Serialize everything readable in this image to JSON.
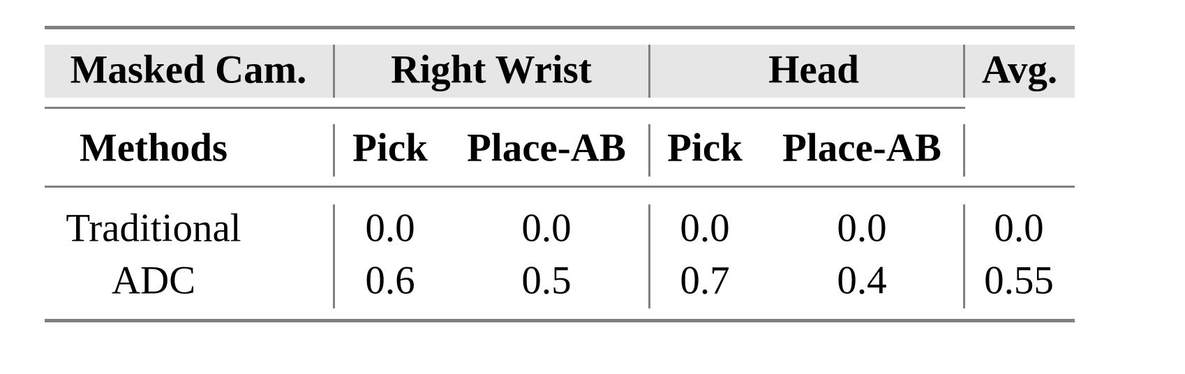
{
  "table": {
    "header_row1": {
      "masked_cam": "Masked Cam.",
      "right_wrist": "Right Wrist",
      "head": "Head",
      "avg": "Avg."
    },
    "header_row2": {
      "methods": "Methods",
      "rw_pick": "Pick",
      "rw_place": "Place-AB",
      "head_pick": "Pick",
      "head_place": "Place-AB"
    },
    "rows": [
      {
        "method": "Traditional",
        "values": [
          "0.0",
          "0.0",
          "0.0",
          "0.0",
          "0.0"
        ]
      },
      {
        "method": "ADC",
        "values": [
          "0.6",
          "0.5",
          "0.7",
          "0.4",
          "0.55"
        ]
      }
    ],
    "header_shade_color": "#e6e6e6",
    "rule_color": "#808080"
  }
}
